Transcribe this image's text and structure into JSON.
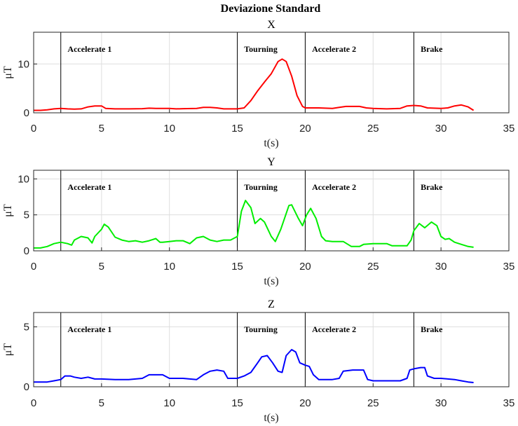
{
  "chart_data": {
    "type": "line",
    "title": "Deviazione Standard",
    "xlabel": "t(s)",
    "ylabel": "μT",
    "xlim": [
      0,
      35
    ],
    "x_ticks": [
      0,
      5,
      10,
      15,
      20,
      25,
      30,
      35
    ],
    "grid": true,
    "phase_boundaries": [
      2,
      15,
      20,
      28
    ],
    "phase_labels": [
      {
        "label": "Accelerate 1",
        "x": 2.5
      },
      {
        "label": "Tourning",
        "x": 15.5
      },
      {
        "label": "Accelerate 2",
        "x": 20.5
      },
      {
        "label": "Brake",
        "x": 28.5
      }
    ],
    "panels": [
      {
        "name": "X",
        "color": "#ff0000",
        "ylim": [
          0,
          16.5
        ],
        "y_ticks": [
          0,
          10
        ],
        "points": [
          [
            0,
            0.5
          ],
          [
            0.5,
            0.5
          ],
          [
            1,
            0.6
          ],
          [
            1.5,
            0.8
          ],
          [
            2,
            0.9
          ],
          [
            2.5,
            0.8
          ],
          [
            3,
            0.75
          ],
          [
            3.5,
            0.8
          ],
          [
            4,
            1.2
          ],
          [
            4.5,
            1.4
          ],
          [
            5,
            1.4
          ],
          [
            5.3,
            0.9
          ],
          [
            6,
            0.8
          ],
          [
            7,
            0.8
          ],
          [
            8,
            0.85
          ],
          [
            8.5,
            0.95
          ],
          [
            9,
            0.9
          ],
          [
            10,
            0.9
          ],
          [
            10.5,
            0.8
          ],
          [
            11,
            0.85
          ],
          [
            12,
            0.9
          ],
          [
            12.5,
            1.1
          ],
          [
            13,
            1.1
          ],
          [
            13.5,
            1.0
          ],
          [
            14,
            0.8
          ],
          [
            15,
            0.8
          ],
          [
            15.5,
            1.0
          ],
          [
            16,
            2.5
          ],
          [
            16.5,
            4.5
          ],
          [
            17,
            6.3
          ],
          [
            17.5,
            8.0
          ],
          [
            18,
            10.5
          ],
          [
            18.3,
            11.0
          ],
          [
            18.6,
            10.5
          ],
          [
            19,
            7.5
          ],
          [
            19.4,
            3.5
          ],
          [
            19.8,
            1.3
          ],
          [
            20,
            1.0
          ],
          [
            21,
            1.0
          ],
          [
            22,
            0.9
          ],
          [
            22.5,
            1.1
          ],
          [
            23,
            1.3
          ],
          [
            24,
            1.3
          ],
          [
            24.5,
            1.0
          ],
          [
            25,
            0.9
          ],
          [
            26,
            0.8
          ],
          [
            27,
            0.9
          ],
          [
            27.5,
            1.4
          ],
          [
            28,
            1.5
          ],
          [
            28.5,
            1.4
          ],
          [
            29,
            1.0
          ],
          [
            30,
            0.9
          ],
          [
            30.5,
            1.0
          ],
          [
            31,
            1.4
          ],
          [
            31.5,
            1.6
          ],
          [
            32,
            1.2
          ],
          [
            32.4,
            0.5
          ]
        ]
      },
      {
        "name": "Y",
        "color": "#00ee00",
        "ylim": [
          0,
          11.2
        ],
        "y_ticks": [
          0,
          5,
          10
        ],
        "points": [
          [
            0,
            0.4
          ],
          [
            0.5,
            0.4
          ],
          [
            1,
            0.6
          ],
          [
            1.5,
            1.0
          ],
          [
            2,
            1.2
          ],
          [
            2.5,
            1.0
          ],
          [
            2.8,
            0.8
          ],
          [
            3,
            1.5
          ],
          [
            3.5,
            2.0
          ],
          [
            4,
            1.8
          ],
          [
            4.3,
            1.1
          ],
          [
            4.5,
            2.0
          ],
          [
            5,
            3.0
          ],
          [
            5.2,
            3.7
          ],
          [
            5.5,
            3.3
          ],
          [
            6,
            1.9
          ],
          [
            6.5,
            1.5
          ],
          [
            7,
            1.3
          ],
          [
            7.5,
            1.4
          ],
          [
            8,
            1.2
          ],
          [
            8.5,
            1.4
          ],
          [
            9,
            1.7
          ],
          [
            9.3,
            1.2
          ],
          [
            9.5,
            1.2
          ],
          [
            10,
            1.3
          ],
          [
            10.5,
            1.4
          ],
          [
            11,
            1.4
          ],
          [
            11.5,
            1.0
          ],
          [
            12,
            1.8
          ],
          [
            12.5,
            2.0
          ],
          [
            13,
            1.5
          ],
          [
            13.5,
            1.3
          ],
          [
            14,
            1.5
          ],
          [
            14.5,
            1.5
          ],
          [
            15,
            2.0
          ],
          [
            15.3,
            5.5
          ],
          [
            15.6,
            7.0
          ],
          [
            16,
            6.0
          ],
          [
            16.3,
            3.8
          ],
          [
            16.7,
            4.5
          ],
          [
            17,
            4.0
          ],
          [
            17.5,
            2.0
          ],
          [
            17.8,
            1.3
          ],
          [
            18.2,
            3.0
          ],
          [
            18.8,
            6.3
          ],
          [
            19,
            6.4
          ],
          [
            19.5,
            4.5
          ],
          [
            19.8,
            3.5
          ],
          [
            20.1,
            5.0
          ],
          [
            20.4,
            5.9
          ],
          [
            20.8,
            4.5
          ],
          [
            21.2,
            2.0
          ],
          [
            21.5,
            1.4
          ],
          [
            22,
            1.3
          ],
          [
            22.8,
            1.3
          ],
          [
            23.4,
            0.6
          ],
          [
            24,
            0.6
          ],
          [
            24.3,
            0.9
          ],
          [
            25,
            1.0
          ],
          [
            26,
            1.0
          ],
          [
            26.4,
            0.7
          ],
          [
            27,
            0.7
          ],
          [
            27.5,
            0.7
          ],
          [
            27.8,
            1.5
          ],
          [
            28,
            2.8
          ],
          [
            28.4,
            3.8
          ],
          [
            28.8,
            3.2
          ],
          [
            29.3,
            4.0
          ],
          [
            29.7,
            3.5
          ],
          [
            30,
            2.0
          ],
          [
            30.3,
            1.6
          ],
          [
            30.6,
            1.7
          ],
          [
            31,
            1.2
          ],
          [
            31.5,
            0.9
          ],
          [
            32,
            0.6
          ],
          [
            32.4,
            0.5
          ]
        ]
      },
      {
        "name": "Z",
        "color": "#0000ff",
        "ylim": [
          0,
          6.2
        ],
        "y_ticks": [
          0,
          5
        ],
        "points": [
          [
            0,
            0.4
          ],
          [
            0.5,
            0.4
          ],
          [
            1,
            0.4
          ],
          [
            1.5,
            0.5
          ],
          [
            2,
            0.6
          ],
          [
            2.3,
            0.9
          ],
          [
            2.7,
            0.9
          ],
          [
            3,
            0.8
          ],
          [
            3.5,
            0.7
          ],
          [
            4,
            0.8
          ],
          [
            4.5,
            0.65
          ],
          [
            5,
            0.65
          ],
          [
            6,
            0.6
          ],
          [
            7,
            0.6
          ],
          [
            8,
            0.7
          ],
          [
            8.5,
            1.0
          ],
          [
            9,
            1.0
          ],
          [
            9.5,
            1.0
          ],
          [
            10,
            0.7
          ],
          [
            11,
            0.7
          ],
          [
            12,
            0.6
          ],
          [
            12.5,
            1.0
          ],
          [
            13,
            1.3
          ],
          [
            13.5,
            1.4
          ],
          [
            14,
            1.3
          ],
          [
            14.3,
            0.7
          ],
          [
            15,
            0.7
          ],
          [
            15.5,
            0.9
          ],
          [
            16,
            1.2
          ],
          [
            16.5,
            2.0
          ],
          [
            16.8,
            2.5
          ],
          [
            17.2,
            2.6
          ],
          [
            17.6,
            2.0
          ],
          [
            18,
            1.3
          ],
          [
            18.3,
            1.2
          ],
          [
            18.6,
            2.6
          ],
          [
            19,
            3.1
          ],
          [
            19.3,
            2.9
          ],
          [
            19.6,
            2.0
          ],
          [
            20,
            1.8
          ],
          [
            20.3,
            1.7
          ],
          [
            20.6,
            1.0
          ],
          [
            21,
            0.6
          ],
          [
            22,
            0.6
          ],
          [
            22.5,
            0.7
          ],
          [
            22.8,
            1.3
          ],
          [
            23.5,
            1.4
          ],
          [
            24,
            1.4
          ],
          [
            24.3,
            1.4
          ],
          [
            24.6,
            0.6
          ],
          [
            25,
            0.5
          ],
          [
            26,
            0.5
          ],
          [
            27,
            0.5
          ],
          [
            27.5,
            0.7
          ],
          [
            27.7,
            1.4
          ],
          [
            28,
            1.5
          ],
          [
            28.5,
            1.6
          ],
          [
            28.8,
            1.6
          ],
          [
            29,
            0.9
          ],
          [
            29.5,
            0.7
          ],
          [
            30,
            0.7
          ],
          [
            31,
            0.6
          ],
          [
            31.5,
            0.5
          ],
          [
            32,
            0.4
          ],
          [
            32.4,
            0.35
          ]
        ]
      }
    ]
  }
}
